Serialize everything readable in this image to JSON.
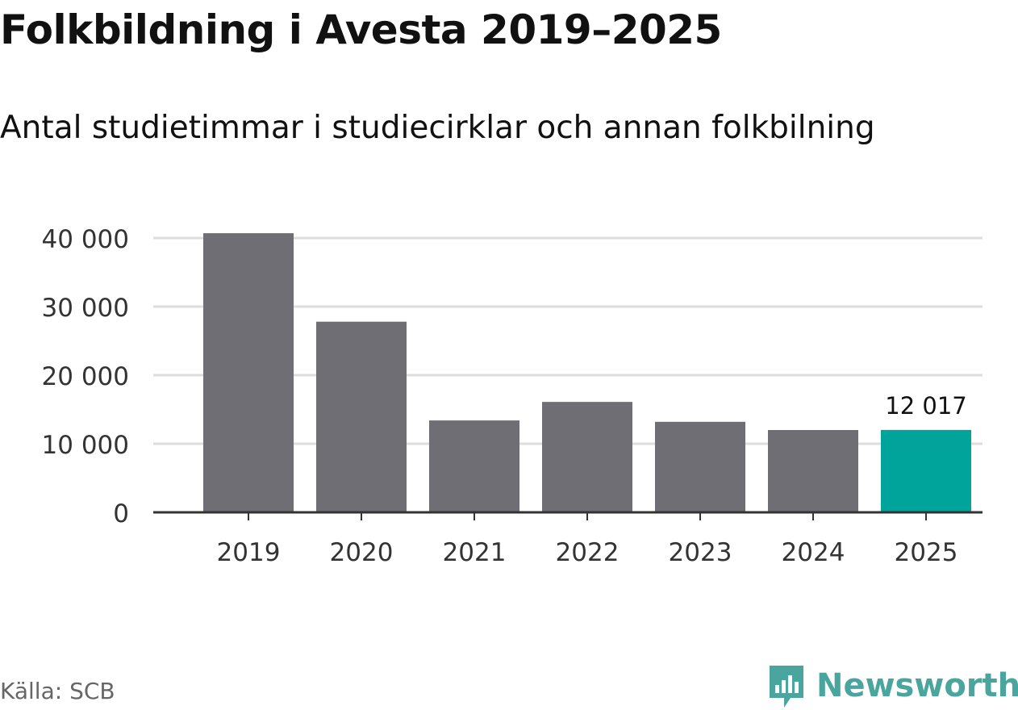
{
  "title": "Folkbildning i Avesta 2019–2025",
  "subtitle": "Antal studietimmar i studiecirklar och annan folkbilning",
  "source": "Källa: SCB",
  "brand": {
    "name": "Newsworthy",
    "icon": "newsworthy-logo-icon"
  },
  "colors": {
    "bar": "#6f6e74",
    "highlight": "#00a49a",
    "grid": "#dddddd",
    "axis": "#333333",
    "brand": "#49a59e"
  },
  "chart_data": {
    "type": "bar",
    "categories": [
      "2019",
      "2020",
      "2021",
      "2022",
      "2023",
      "2024",
      "2025"
    ],
    "values": [
      40700,
      27800,
      13400,
      16100,
      13200,
      12000,
      12017
    ],
    "highlight_index": 6,
    "data_labels": [
      {
        "index": 6,
        "text": "12 017"
      }
    ],
    "yticks": [
      0,
      10000,
      20000,
      30000,
      40000
    ],
    "ytick_labels": [
      "0",
      "10 000",
      "20 000",
      "30 000",
      "40 000"
    ],
    "ylim": [
      0,
      40000
    ],
    "xlabel": "",
    "ylabel": "",
    "grid": true,
    "legend": "none"
  }
}
